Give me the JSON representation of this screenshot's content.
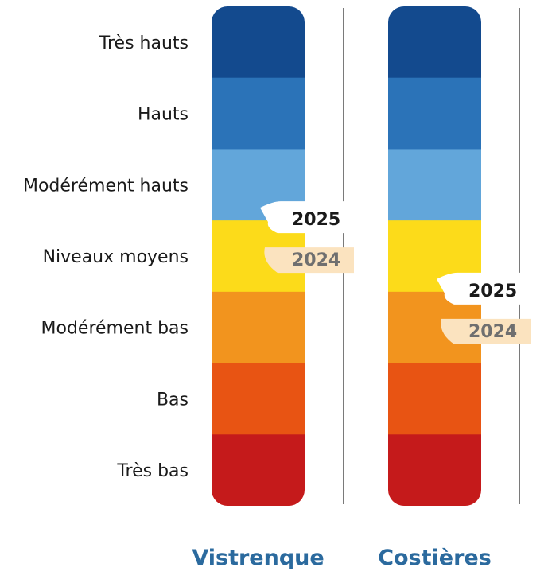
{
  "chart_data": {
    "type": "bar",
    "levels": [
      {
        "label": "Très hauts",
        "color": "#134a8e"
      },
      {
        "label": "Hauts",
        "color": "#2b73b8"
      },
      {
        "label": "Modérément hauts",
        "color": "#62a6da"
      },
      {
        "label": "Niveaux moyens",
        "color": "#fcdb1a"
      },
      {
        "label": "Modérément bas",
        "color": "#f2941e"
      },
      {
        "label": "Bas",
        "color": "#e85413"
      },
      {
        "label": "Très bas",
        "color": "#c51a1b"
      }
    ],
    "columns": [
      {
        "name": "Vistrenque",
        "current_year": "2025",
        "current_level": 3,
        "previous_year": "2024",
        "previous_level": 3
      },
      {
        "name": "Costières",
        "current_year": "2025",
        "current_level": 4,
        "previous_year": "2024",
        "previous_level": 4
      }
    ],
    "badge_colors": {
      "current": "#ffffff",
      "previous": "#fbe3bf"
    },
    "title_color": "#2b6a9e"
  }
}
